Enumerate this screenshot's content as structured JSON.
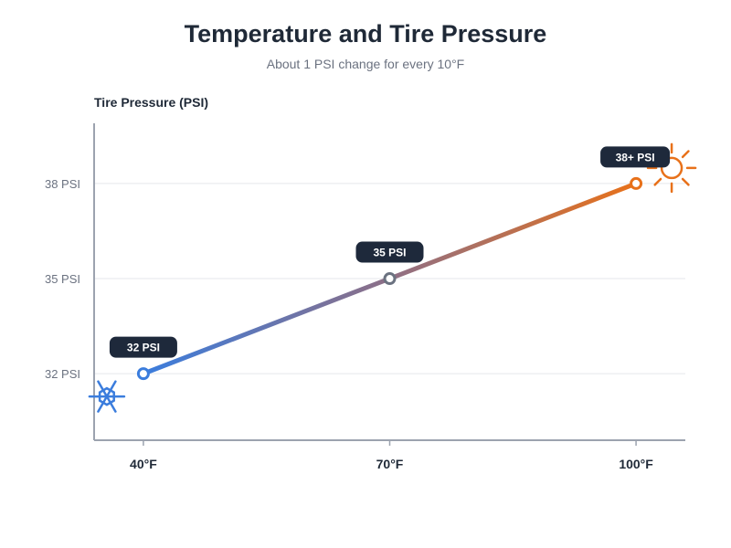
{
  "chart_data": {
    "type": "line",
    "title": "Temperature and Tire Pressure",
    "subtitle": "About 1 PSI change for every 10°F",
    "ylabel": "Tire Pressure (PSI)",
    "xlabel": "",
    "x": [
      40,
      70,
      100
    ],
    "xticks": [
      {
        "value": 40,
        "label": "40°F"
      },
      {
        "value": 70,
        "label": "70°F"
      },
      {
        "value": 100,
        "label": "100°F"
      }
    ],
    "yticks": [
      {
        "value": 32,
        "label": "32 PSI"
      },
      {
        "value": 35,
        "label": "35 PSI"
      },
      {
        "value": 38,
        "label": "38 PSI"
      }
    ],
    "xlim": [
      34,
      106
    ],
    "ylim": [
      29.9,
      39.9
    ],
    "grid": true,
    "series": [
      {
        "values": [
          32,
          35,
          38
        ]
      }
    ],
    "data_labels": [
      "32 PSI",
      "35 PSI",
      "38+ PSI"
    ],
    "colors": {
      "cold": "#3b7ddd",
      "mid": "#6b7280",
      "hot": "#e8711a",
      "label_bg": "#1e293b"
    },
    "icons": [
      "snowflake-icon",
      "sun-icon"
    ]
  }
}
